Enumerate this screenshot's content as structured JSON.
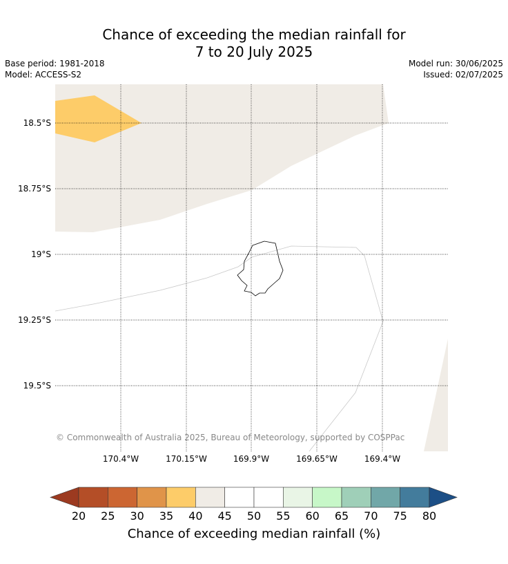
{
  "title": {
    "line1": "Chance of exceeding the median rainfall for",
    "line2": "7 to 20 July 2025"
  },
  "meta": {
    "base_period": "Base period: 1981-2018",
    "model": "Model: ACCESS-S2",
    "model_run": "Model run: 30/06/2025",
    "issued": "Issued: 02/07/2025"
  },
  "map": {
    "latitude_labels": [
      "18.5°S",
      "18.75°S",
      "19°S",
      "19.25°S",
      "19.5°S"
    ],
    "longitude_labels": [
      "170.4°W",
      "170.15°W",
      "169.9°W",
      "169.65°W",
      "169.4°W"
    ],
    "copyright": "© Commonwealth of Australia 2025, Bureau of Meteorology, supported by COSPPac",
    "regions": [
      {
        "category": "35-40",
        "color": "#fdcc69"
      },
      {
        "category": "40-45",
        "color": "#f0ece6"
      }
    ]
  },
  "colorbar": {
    "label": "Chance of exceeding median rainfall (%)",
    "ticks": [
      "20",
      "25",
      "30",
      "35",
      "40",
      "45",
      "50",
      "55",
      "60",
      "65",
      "70",
      "75",
      "80"
    ],
    "under_color": "#9c3a20",
    "over_color": "#1c4f86",
    "colors": [
      "#b44e27",
      "#cc6632",
      "#e09449",
      "#fdcc69",
      "#f0ece6",
      "#ffffff",
      "#ffffff",
      "#e9f5e6",
      "#c7f7c8",
      "#9fcfb8",
      "#71a7a8",
      "#437c9c"
    ]
  }
}
